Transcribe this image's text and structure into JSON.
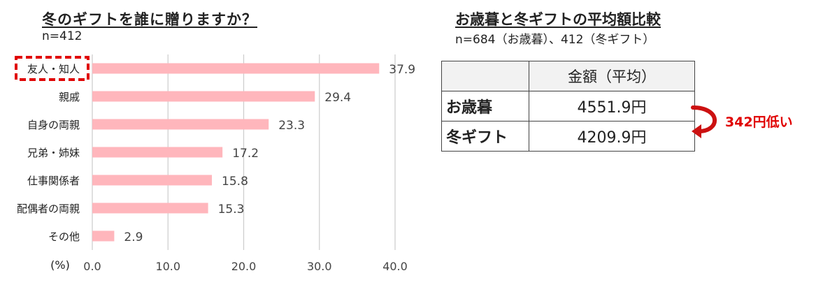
{
  "left": {
    "title": "冬のギフトを誰に贈りますか？",
    "n": "n=412"
  },
  "right": {
    "title": "お歳暮と冬ギフトの平均額比較",
    "n": "n=684（お歳暮）、412（冬ギフト）",
    "table": {
      "header": "金額（平均）",
      "rows": [
        {
          "label": "お歳暮",
          "value": "4551.9円"
        },
        {
          "label": "冬ギフト",
          "value": "4209.9円"
        }
      ]
    },
    "diff_label": "342円低い"
  },
  "colors": {
    "bar": "#ffb6bc",
    "highlight": "#e00000",
    "grid": "#cccccc"
  },
  "chart_data": {
    "type": "bar",
    "orientation": "horizontal",
    "categories": [
      "友人・知人",
      "親戚",
      "自身の両親",
      "兄弟・姉妹",
      "仕事関係者",
      "配偶者の両親",
      "その他"
    ],
    "values": [
      37.9,
      29.4,
      23.3,
      17.2,
      15.8,
      15.3,
      2.9
    ],
    "value_labels": [
      "37.9",
      "29.4",
      "23.3",
      "17.2",
      "15.8",
      "15.3",
      "2.9"
    ],
    "xlim": [
      0,
      40
    ],
    "xticks": [
      0,
      10,
      20,
      30,
      40
    ],
    "xtick_labels": [
      "0.0",
      "10.0",
      "20.0",
      "30.0",
      "40.0"
    ],
    "unit_label": "(%)",
    "grid": true,
    "highlighted_category": "友人・知人"
  }
}
